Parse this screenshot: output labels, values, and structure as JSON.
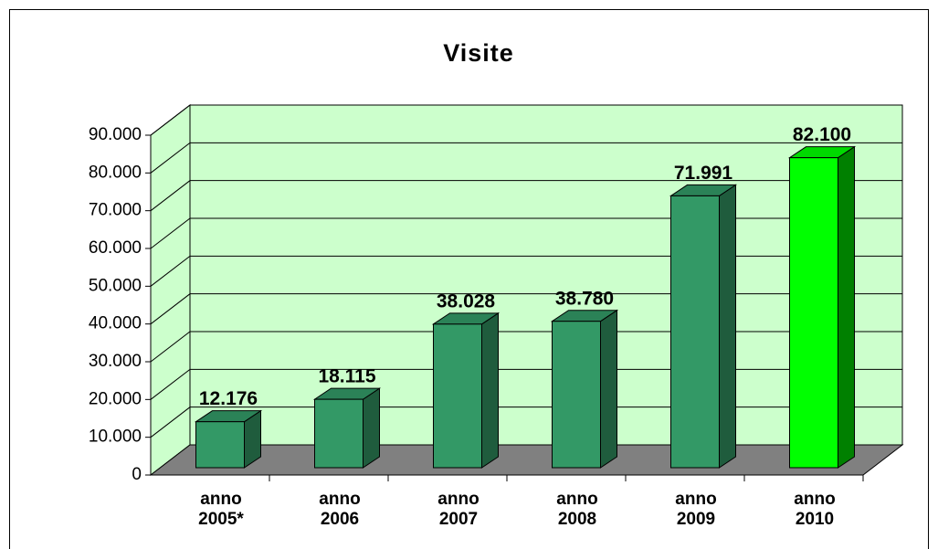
{
  "chart_data": {
    "type": "bar3d",
    "title": "Visite",
    "categories": [
      "anno 2005*",
      "anno 2006",
      "anno 2007",
      "anno 2008",
      "anno 2009",
      "anno 2010"
    ],
    "values": [
      12176,
      18115,
      38028,
      38780,
      71991,
      82100
    ],
    "value_labels": [
      "12.176",
      "18.115",
      "38.028",
      "38.780",
      "71.991",
      "82.100"
    ],
    "colors": [
      "#339966",
      "#339966",
      "#339966",
      "#339966",
      "#339966",
      "#00ff00"
    ],
    "ylim": [
      0,
      90000
    ],
    "yticks": [
      0,
      {
        "value": 10000,
        "label": "10.000"
      },
      {
        "value": 20000,
        "label": "20.000"
      },
      {
        "value": 30000,
        "label": "30.000"
      },
      {
        "value": 40000,
        "label": "40.000"
      },
      {
        "value": 50000,
        "label": "50.000"
      },
      {
        "value": 60000,
        "label": "60.000"
      },
      {
        "value": 70000,
        "label": "70.000"
      },
      {
        "value": 80000,
        "label": "80.000"
      },
      {
        "value": 90000,
        "label": "90.000"
      }
    ],
    "grid": true
  }
}
